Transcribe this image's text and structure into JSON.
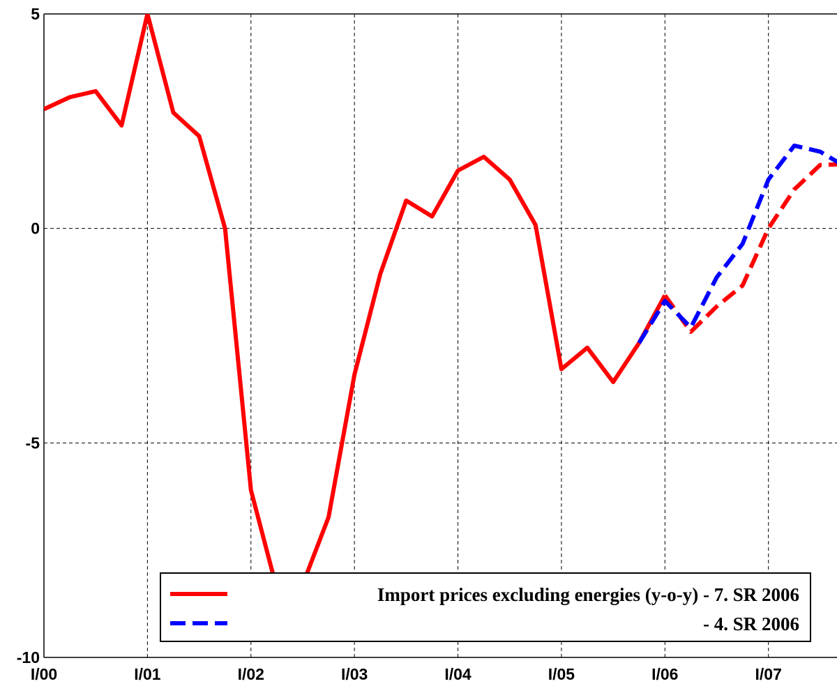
{
  "chart_data": {
    "type": "line",
    "x": [
      0,
      1,
      2,
      3,
      4,
      5,
      6,
      7,
      8,
      9,
      10,
      11,
      12,
      13,
      14,
      15,
      16,
      17,
      18,
      19,
      20,
      21,
      22,
      23,
      24,
      25,
      26,
      27,
      28,
      29,
      30,
      31
    ],
    "xlim": [
      0,
      30.65
    ],
    "xticks": [
      {
        "value": 0,
        "label": "I/00"
      },
      {
        "value": 4,
        "label": "I/01"
      },
      {
        "value": 8,
        "label": "I/02"
      },
      {
        "value": 12,
        "label": "I/03"
      },
      {
        "value": 16,
        "label": "I/04"
      },
      {
        "value": 20,
        "label": "I/05"
      },
      {
        "value": 24,
        "label": "I/06"
      },
      {
        "value": 28,
        "label": "I/07"
      }
    ],
    "ylim": [
      -10,
      5
    ],
    "yticks": [
      -10,
      -5,
      0,
      5
    ],
    "grid": true,
    "series": [
      {
        "name": "Import prices excluding energies (y-o-y) - 7. SR 2006",
        "color": "#ff0000",
        "dash": false,
        "values": [
          2.78,
          3.06,
          3.2,
          2.4,
          5.0,
          2.7,
          2.15,
          0,
          -6.1,
          -8.4,
          -8.3,
          -6.73,
          -3.41,
          -1.06,
          0.65,
          0.28,
          1.35,
          1.67,
          1.14,
          0.08,
          -3.28,
          -2.78,
          -3.58,
          -2.67,
          -1.56,
          null,
          null,
          null,
          null,
          null,
          null,
          null
        ]
      },
      {
        "color": "#ff0000",
        "dash": true,
        "values": [
          null,
          null,
          null,
          null,
          null,
          null,
          null,
          null,
          null,
          null,
          null,
          null,
          null,
          null,
          null,
          null,
          null,
          null,
          null,
          null,
          null,
          null,
          null,
          null,
          -1.56,
          -2.41,
          -1.82,
          -1.33,
          0,
          0.91,
          1.48,
          1.5
        ]
      },
      {
        "name": "- 4. SR 2006",
        "color": "#0000ff",
        "dash": true,
        "values": [
          null,
          null,
          null,
          null,
          null,
          null,
          null,
          null,
          null,
          null,
          null,
          null,
          null,
          null,
          null,
          null,
          null,
          null,
          null,
          null,
          null,
          null,
          null,
          -2.67,
          -1.69,
          -2.31,
          -1.14,
          -0.36,
          1.14,
          1.93,
          1.79,
          1.43
        ]
      }
    ]
  }
}
